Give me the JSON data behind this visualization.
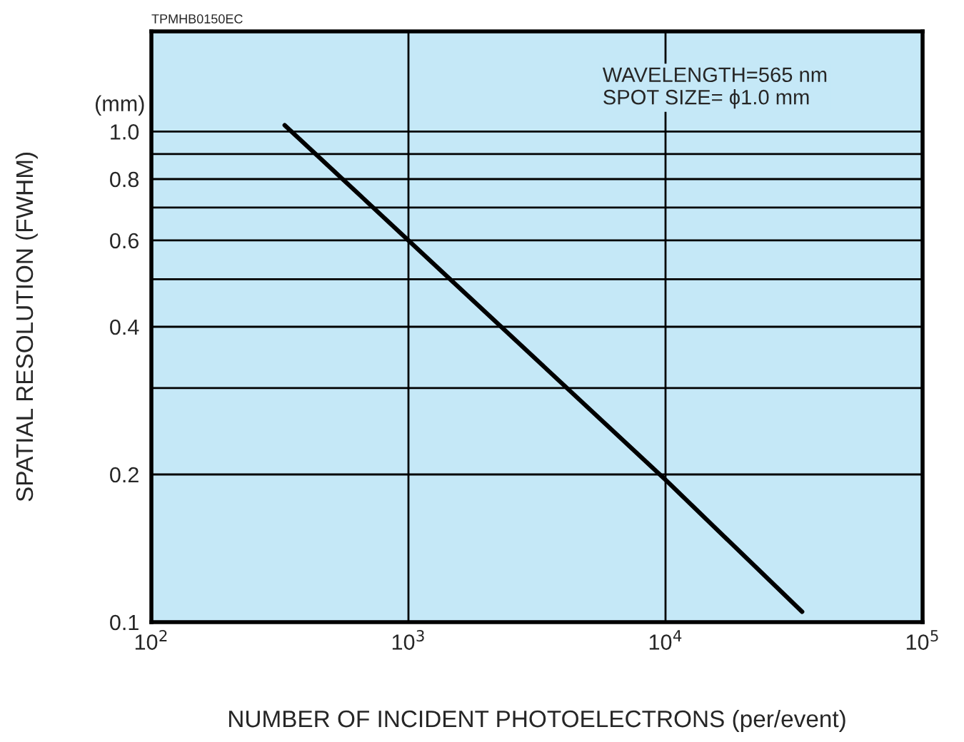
{
  "chart_data": {
    "type": "line",
    "xlabel": "NUMBER OF INCIDENT PHOTOELECTRONS (per/event)",
    "ylabel": "SPATIAL RESOLUTION (FWHM)",
    "annotations": [
      "TPMHB0150EC",
      "(mm)",
      "WAVELENGTH=565 nm\nSPOT SIZE= ϕ1.0 mm"
    ],
    "series": [
      {
        "color": "#000000",
        "x": [
          330,
          1000,
          10000,
          34000
        ],
        "values": [
          1.03,
          0.6,
          0.195,
          0.105
        ]
      }
    ],
    "log": "xy",
    "xlim": [
      100,
      100000
    ],
    "xticks": [
      {
        "value": 100,
        "label": "10$^{2}$"
      },
      {
        "value": 1000,
        "label": "10$^{3}$"
      },
      {
        "value": 10000,
        "label": "10$^{4}$"
      },
      {
        "value": 100000,
        "label": "10$^{5}$"
      }
    ],
    "ylim": [
      0.1,
      1.6
    ],
    "yticks": [
      {
        "value": 0.1,
        "label": "0.1"
      },
      {
        "value": 0.2,
        "label": "0.2"
      },
      {
        "value": 0.3,
        "label": null
      },
      {
        "value": 0.4,
        "label": "0.4"
      },
      {
        "value": 0.5,
        "label": null
      },
      {
        "value": 0.6,
        "label": "0.6"
      },
      {
        "value": 0.7,
        "label": null
      },
      {
        "value": 0.8,
        "label": "0.8"
      },
      {
        "value": 0.9,
        "label": null
      },
      {
        "value": 1.0,
        "label": "1.0"
      }
    ],
    "grid": true,
    "marker": "none",
    "line_style": "solid"
  }
}
